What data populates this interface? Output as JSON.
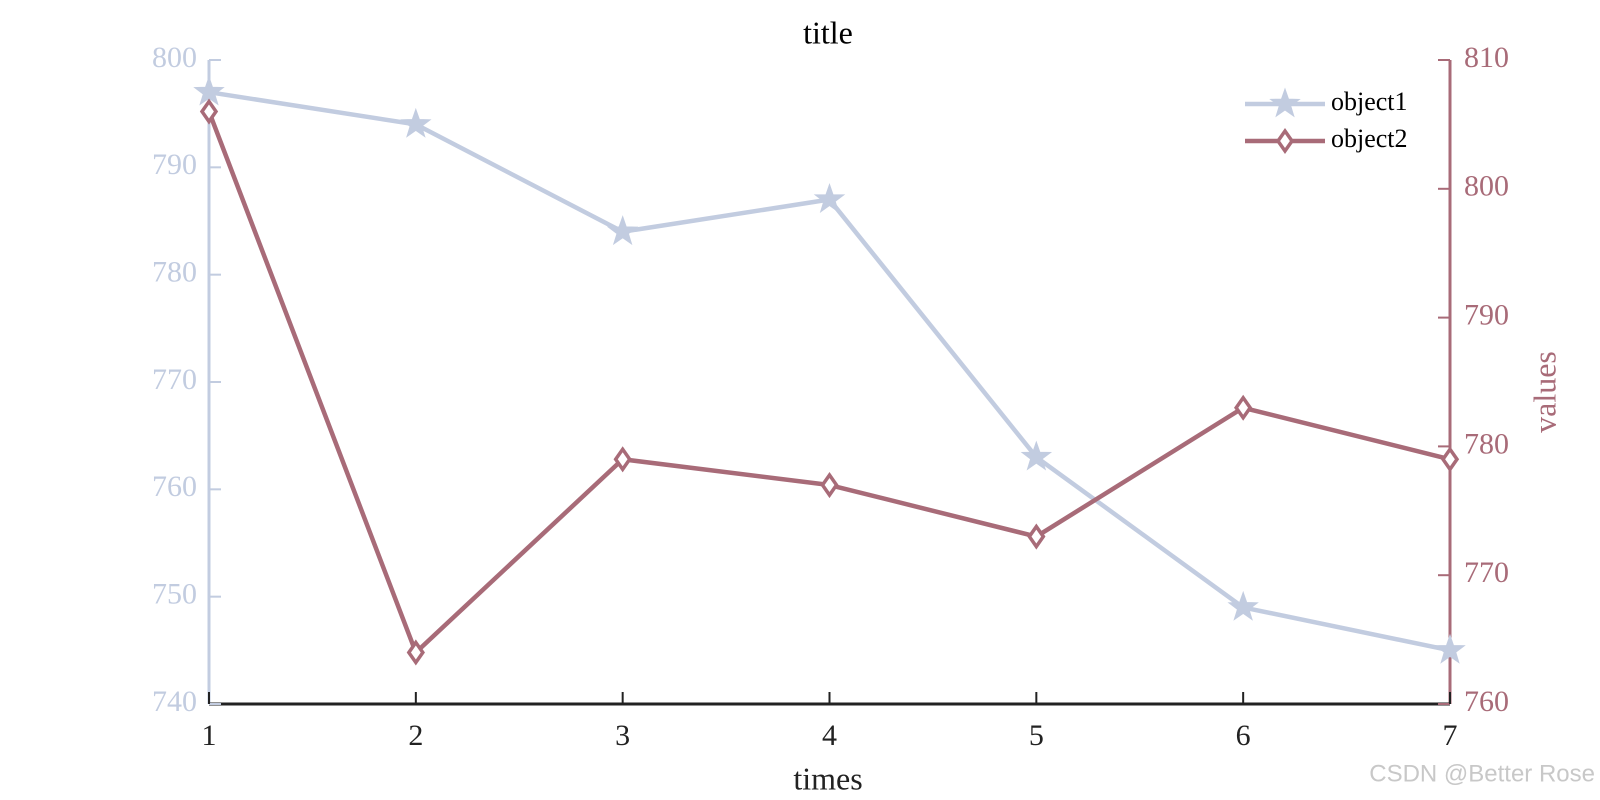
{
  "chart_data": {
    "type": "line",
    "title": "title",
    "xlabel": "times",
    "y2label": "values",
    "x": [
      1,
      2,
      3,
      4,
      5,
      6,
      7
    ],
    "xlim": [
      1,
      7
    ],
    "xticks": [
      1,
      2,
      3,
      4,
      5,
      6,
      7
    ],
    "ylim": [
      740,
      800
    ],
    "yticks": [
      740,
      750,
      760,
      770,
      780,
      790,
      800
    ],
    "y2lim": [
      760,
      810
    ],
    "y2ticks": [
      760,
      770,
      780,
      790,
      800,
      810
    ],
    "legend": "upper right",
    "series": [
      {
        "name": "object1",
        "color": "#c2cce0",
        "marker": "star",
        "values": [
          797,
          794,
          784,
          787,
          763,
          749,
          745
        ]
      },
      {
        "name": "object2",
        "color": "#a86b78",
        "marker": "diamond",
        "axis": "y2",
        "values": [
          806,
          764,
          779,
          777,
          773,
          783,
          779
        ]
      }
    ],
    "watermark": "CSDN @Better Rose"
  }
}
